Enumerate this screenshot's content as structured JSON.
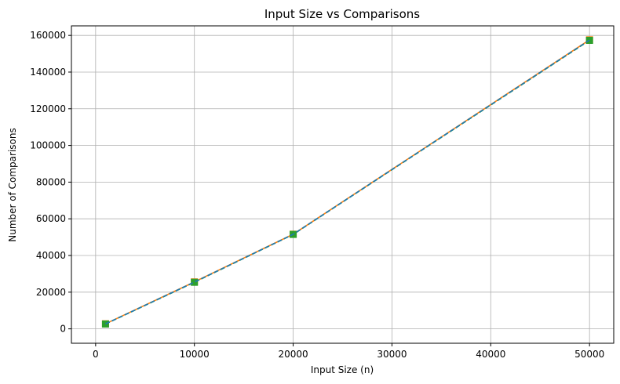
{
  "chart_data": {
    "type": "line",
    "title": "Input Size vs Comparisons",
    "xlabel": "Input Size (n)",
    "ylabel": "Number of Comparisons",
    "xlim": [
      -2450,
      52450
    ],
    "ylim": [
      -7850,
      165200
    ],
    "x_ticks": [
      0,
      10000,
      20000,
      30000,
      40000,
      50000
    ],
    "y_ticks": [
      0,
      20000,
      40000,
      60000,
      80000,
      100000,
      120000,
      140000,
      160000
    ],
    "grid": true,
    "x": [
      1000,
      10000,
      20000,
      50000
    ],
    "series": [
      {
        "values": [
          2750,
          25600,
          51600,
          157600
        ],
        "color": "#ff7f0e",
        "marker": "square",
        "linestyle": "solid"
      },
      {
        "values": [
          2650,
          25400,
          51500,
          157300
        ],
        "color": "#2ca02c",
        "marker": "square",
        "linestyle": "dashed"
      },
      {
        "values": [
          2700,
          25500,
          51550,
          157450
        ],
        "color": "#1f77b4",
        "marker": "none",
        "linestyle": "dashed"
      }
    ]
  }
}
